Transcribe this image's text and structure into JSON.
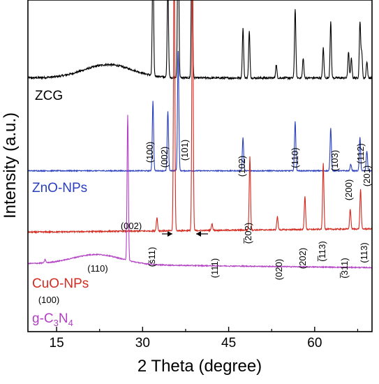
{
  "chart_data": {
    "type": "line",
    "title": "",
    "xlabel": "2 Theta (degree)",
    "ylabel": "Intensity (a.u.)",
    "xlim": [
      10,
      70
    ],
    "x_ticks": [
      15,
      30,
      45,
      60
    ],
    "y_ticks_shown": false,
    "grid": false,
    "legend": "none",
    "series": [
      {
        "name": "ZCG",
        "color": "#000000",
        "baseline": 0.765,
        "peaks": [
          [
            31.8,
            0.36
          ],
          [
            34.4,
            0.28
          ],
          [
            36.2,
            0.52
          ],
          [
            38.6,
            0.46
          ],
          [
            47.5,
            0.15
          ],
          [
            48.6,
            0.14
          ],
          [
            53.3,
            0.04
          ],
          [
            56.6,
            0.21
          ],
          [
            58.0,
            0.06
          ],
          [
            61.5,
            0.09
          ],
          [
            62.8,
            0.17
          ],
          [
            65.9,
            0.08
          ],
          [
            66.4,
            0.06
          ],
          [
            67.9,
            0.17
          ],
          [
            68.2,
            0.08
          ],
          [
            69.1,
            0.05
          ]
        ]
      },
      {
        "name": "ZnO-NPs",
        "color": "#2a3fbf",
        "baseline": 0.485,
        "peaks": [
          [
            31.8,
            0.21
          ],
          [
            34.4,
            0.18
          ],
          [
            36.2,
            0.36
          ],
          [
            47.5,
            0.1
          ],
          [
            56.6,
            0.15
          ],
          [
            62.8,
            0.13
          ],
          [
            66.3,
            0.02
          ],
          [
            67.9,
            0.1
          ],
          [
            69.1,
            0.06
          ]
        ]
      },
      {
        "name": "CuO-NPs",
        "color": "#d42a1f",
        "baseline": 0.3,
        "peaks": [
          [
            32.5,
            0.04
          ],
          [
            35.5,
            0.86
          ],
          [
            38.7,
            0.82
          ],
          [
            42.1,
            0.02
          ],
          [
            48.7,
            0.22
          ],
          [
            53.5,
            0.04
          ],
          [
            58.3,
            0.1
          ],
          [
            61.5,
            0.2
          ],
          [
            66.2,
            0.06
          ],
          [
            68.0,
            0.12
          ]
        ]
      },
      {
        "name": "g-C3N4",
        "color": "#b23fc4",
        "baseline": 0.205,
        "peaks": [
          [
            13.0,
            0.01
          ],
          [
            27.4,
            0.44
          ]
        ]
      }
    ],
    "annotations": [
      {
        "text": "(100)",
        "x": 31.8
      },
      {
        "text": "(002)",
        "x": 34.4
      },
      {
        "text": "(101)",
        "x": 36.2
      },
      {
        "text": "(102)",
        "x": 47.5
      },
      {
        "text": "(110)",
        "x": 56.6
      },
      {
        "text": "(103)",
        "x": 62.8
      },
      {
        "text": "(200)",
        "x": 66.3
      },
      {
        "text": "(112)",
        "x": 67.9
      },
      {
        "text": "(201)",
        "x": 69.1
      },
      {
        "text": "(002)",
        "x": 27.4
      },
      {
        "text": "(110)",
        "x": 32.5
      },
      {
        "text": "(š11)",
        "x": 35.5
      },
      {
        "text": "(111)",
        "x": 38.7
      },
      {
        "text": "(̅202)",
        "x": 48.7
      },
      {
        "text": "(020)",
        "x": 53.5
      },
      {
        "text": "(202)",
        "x": 58.3
      },
      {
        "text": "(̅113)",
        "x": 61.5
      },
      {
        "text": "(̅311)",
        "x": 66.2
      },
      {
        "text": "(113)",
        "x": 68.0
      },
      {
        "text": "(100)",
        "x": 13.0
      }
    ]
  },
  "labels": {
    "zcg": "ZCG",
    "zno": "ZnO-NPs",
    "cuo": "CuO-NPs",
    "gcn_main": "g-C",
    "gcn_sub1": "3",
    "gcn_mid": "N",
    "gcn_sub2": "4"
  }
}
